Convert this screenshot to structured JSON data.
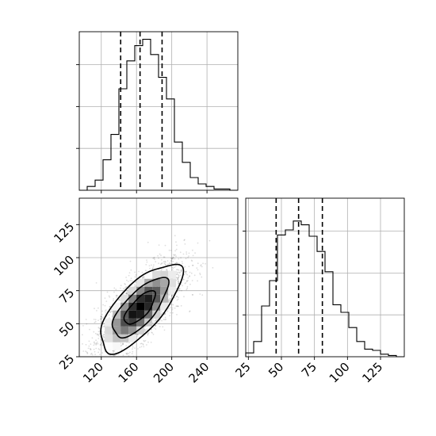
{
  "chart_data": [
    {
      "type": "histogram",
      "panel": "x-marginal",
      "x_range": [
        95,
        275
      ],
      "bin_width": 9,
      "bin_start": 95,
      "counts": [
        0,
        3,
        8,
        24,
        44,
        80,
        102,
        114,
        119,
        107,
        89,
        72,
        38,
        22,
        10,
        5,
        3,
        1,
        1,
        0
      ],
      "y_max": 125,
      "y_ticks": [
        33,
        66,
        99
      ],
      "quantile_lines": [
        142,
        164,
        189
      ],
      "grid": true
    },
    {
      "type": "scatter-density-contour",
      "panel": "joint",
      "x_range": [
        95,
        275
      ],
      "y_range": [
        25,
        145
      ],
      "x_ticks": [
        120,
        160,
        200,
        240
      ],
      "y_ticks": [
        25,
        50,
        75,
        100,
        125
      ],
      "x_tick_labels": [
        "120",
        "160",
        "200",
        "240"
      ],
      "y_tick_labels": [
        "25",
        "50",
        "75",
        "100",
        "125"
      ],
      "mean": [
        164,
        62
      ],
      "std": [
        25,
        18
      ],
      "correlation": 0.72,
      "grid": true
    },
    {
      "type": "histogram",
      "panel": "y-marginal",
      "x_range": [
        23,
        143
      ],
      "bin_width": 6,
      "bin_start": 23,
      "counts": [
        3,
        12,
        40,
        60,
        96,
        100,
        107,
        104,
        95,
        83,
        67,
        41,
        35,
        23,
        12,
        6,
        5,
        2,
        1,
        0
      ],
      "y_max": 125,
      "y_ticks": [
        33,
        66,
        99
      ],
      "x_ticks": [
        25,
        50,
        75,
        100,
        125
      ],
      "x_tick_labels": [
        "25",
        "50",
        "75",
        "100",
        "125"
      ],
      "quantile_lines": [
        46,
        63,
        81
      ],
      "grid": true
    }
  ]
}
